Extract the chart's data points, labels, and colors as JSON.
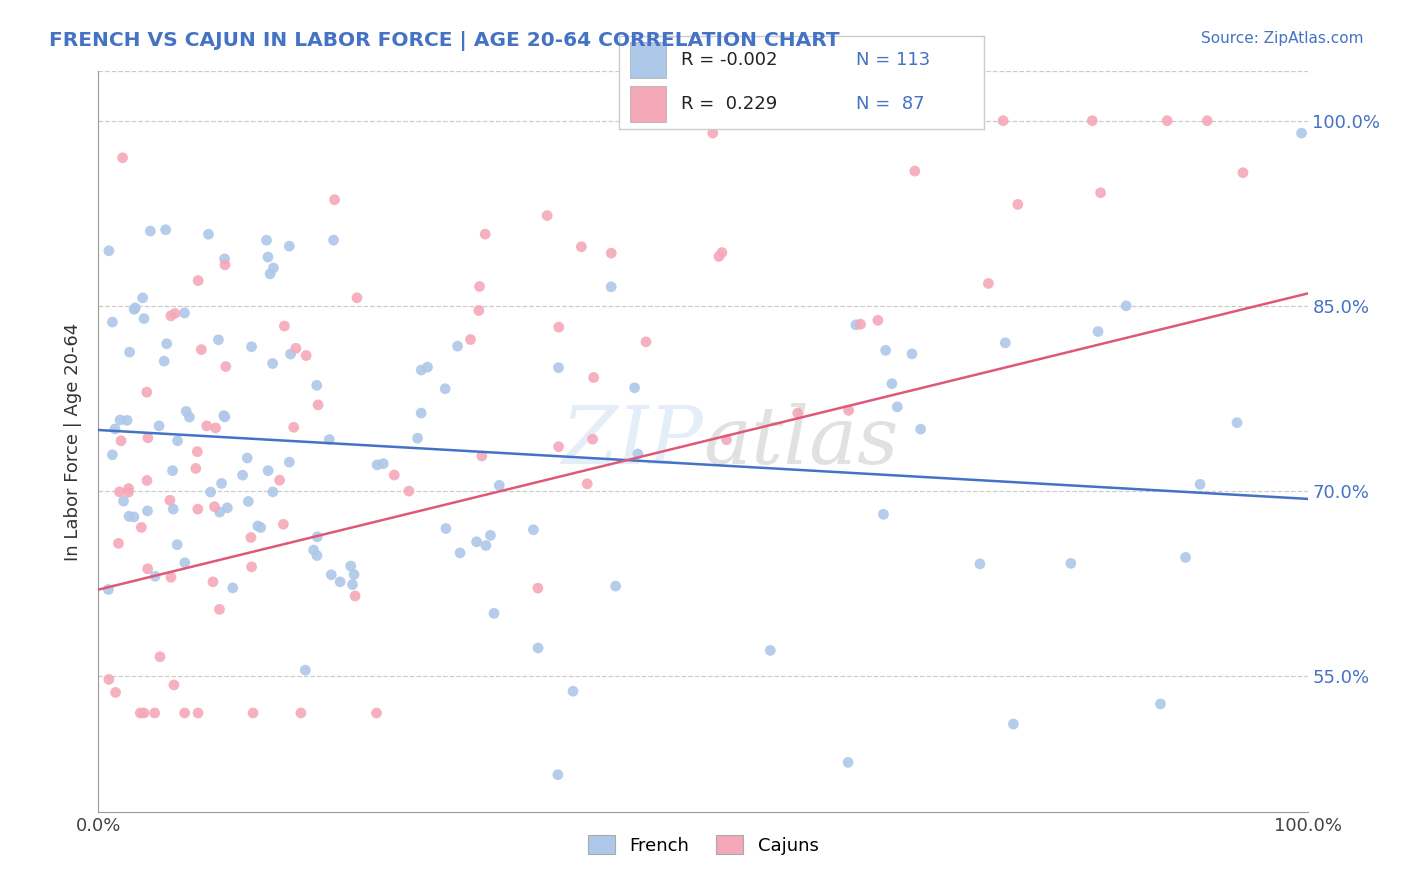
{
  "title": "FRENCH VS CAJUN IN LABOR FORCE | AGE 20-64 CORRELATION CHART",
  "source": "Source: ZipAtlas.com",
  "ylabel": "In Labor Force | Age 20-64",
  "ytick_labels": [
    "55.0%",
    "70.0%",
    "85.0%",
    "100.0%"
  ],
  "ytick_values": [
    0.55,
    0.7,
    0.85,
    1.0
  ],
  "xtick_left": "0.0%",
  "xtick_right": "100.0%",
  "xlim": [
    0.0,
    1.0
  ],
  "ylim": [
    0.44,
    1.04
  ],
  "R_french": -0.002,
  "N_french": 113,
  "R_cajun": 0.229,
  "N_cajun": 87,
  "french_dot_color": "#adc8e8",
  "cajun_dot_color": "#f5a8b8",
  "french_line_color": "#4472c4",
  "cajun_line_color": "#e05878",
  "title_color": "#4472c4",
  "source_color": "#4472c4",
  "legend_r_n_color": "#4472c4",
  "watermark_color": "#a8c8e8",
  "grid_color": "#cccccc",
  "background": "#ffffff"
}
